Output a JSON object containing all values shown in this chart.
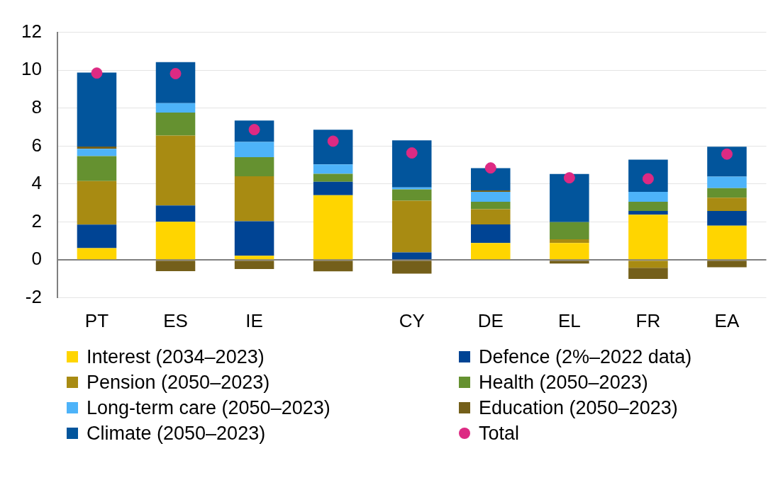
{
  "chart_data": {
    "type": "bar",
    "stacked": true,
    "categories": [
      "PT",
      "ES",
      "IE",
      null,
      "CY",
      "DE",
      "EL",
      "FR",
      "EA"
    ],
    "series": [
      {
        "name": "Interest (2034–2023)",
        "color": "#ffd500",
        "values": [
          0.62,
          2.01,
          0.22,
          3.41,
          0,
          0.89,
          0.89,
          2.39,
          1.81
        ]
      },
      {
        "name": "Defence (2%–2022 data)",
        "color": "#004494",
        "values": [
          1.24,
          0.86,
          1.82,
          0.71,
          0.4,
          0.98,
          0,
          0.19,
          0.77
        ]
      },
      {
        "name": "Pension (2050–2023)",
        "color": "#a88b12",
        "values": [
          2.3,
          3.69,
          2.37,
          0,
          2.72,
          0.81,
          0.2,
          -0.41,
          0.7
        ]
      },
      {
        "name": "Health (2050–2023)",
        "color": "#659130",
        "values": [
          1.31,
          1.21,
          1.01,
          0.42,
          0.6,
          0.39,
          0.9,
          0.49,
          0.51
        ]
      },
      {
        "name": "Long-term care (2050–2023)",
        "color": "#4db3f9",
        "values": [
          0.39,
          0.49,
          0.8,
          0.5,
          0.1,
          0.52,
          0,
          0.52,
          0.6
        ]
      },
      {
        "name": "Education (2050–2023)",
        "color": "#745f1a",
        "values": [
          0.12,
          -0.59,
          -0.48,
          -0.6,
          -0.72,
          0.07,
          -0.19,
          -0.59,
          -0.38
        ]
      },
      {
        "name": "Climate (2050–2023)",
        "color": "#02559c",
        "values": [
          3.9,
          2.17,
          1.13,
          1.82,
          2.48,
          1.18,
          2.54,
          1.7,
          1.58
        ]
      },
      {
        "name": "Total",
        "type": "scatter",
        "marker": "circle",
        "color": "#dd2a83",
        "values": [
          9.85,
          9.82,
          6.87,
          6.26,
          5.64,
          4.85,
          4.33,
          4.28,
          5.58
        ]
      }
    ],
    "ylim": [
      -2,
      12
    ],
    "yticks": [
      -2,
      0,
      2,
      4,
      6,
      8,
      10,
      12
    ],
    "grid": "y",
    "legend": "bottom"
  }
}
